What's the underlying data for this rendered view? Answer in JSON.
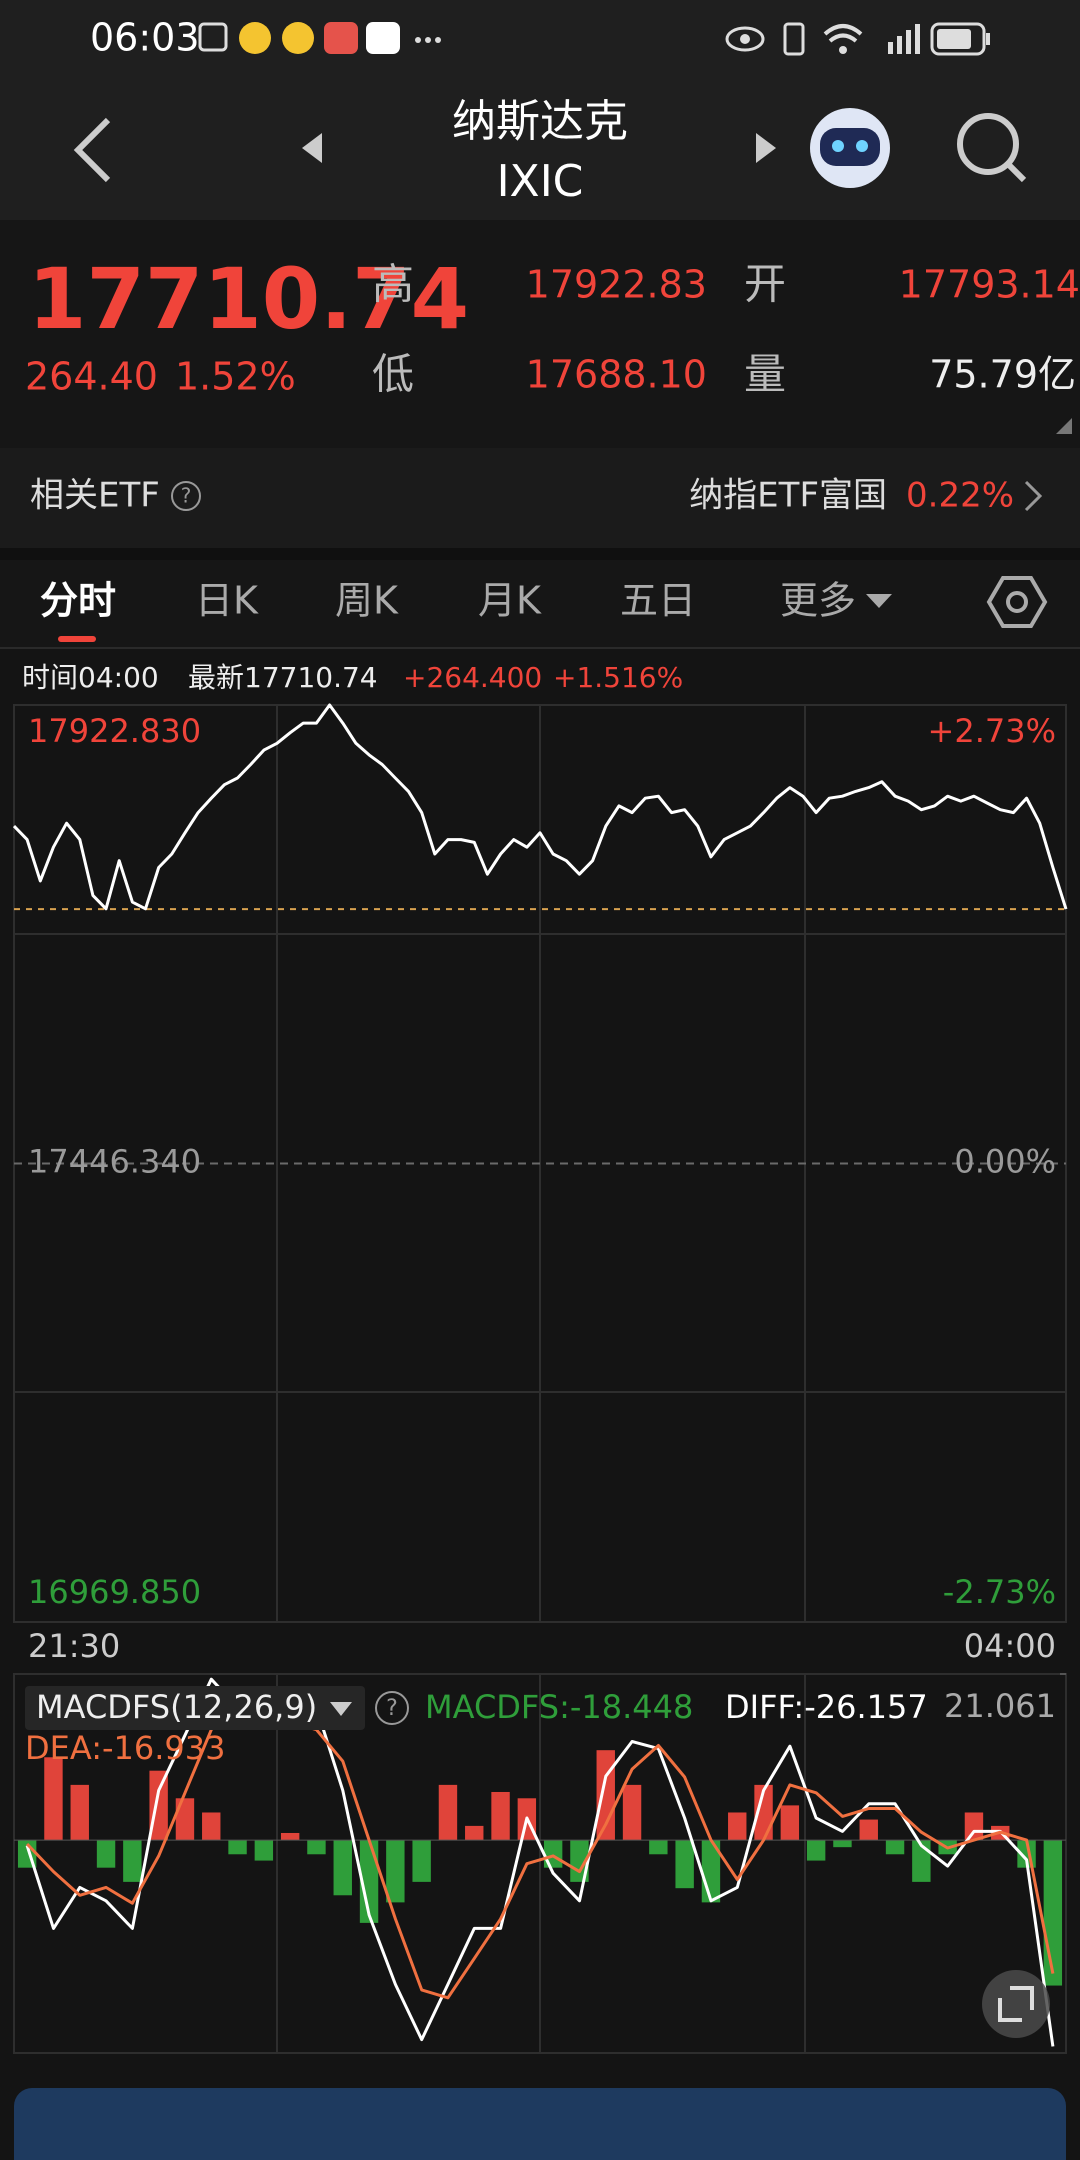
{
  "status_bar": {
    "time": "06:03"
  },
  "header": {
    "title": "纳斯达克",
    "subtitle": "IXIC"
  },
  "quote": {
    "price": 17710.74,
    "change": "264.40",
    "change_pct": "1.52%",
    "high_label": "高",
    "high": 17922.83,
    "open_label": "开",
    "open": 17793.14,
    "low_label": "低",
    "low": "17688.10",
    "volume_label": "量",
    "volume": "75.79亿"
  },
  "etf": {
    "label": "相关ETF",
    "name": "纳指ETF富国",
    "change": "0.22%"
  },
  "tabs": [
    "分时",
    "日K",
    "周K",
    "月K",
    "五日",
    "更多"
  ],
  "info": {
    "time": "时间04:00",
    "latest": "最新17710.74",
    "change": "+264.400",
    "change_pct": "+1.516%"
  },
  "chart_data": [
    {
      "type": "line",
      "color": "#ffffff",
      "x_labels": [
        "21:30",
        "04:00"
      ],
      "ylim": [
        16969.85,
        17922.83
      ],
      "yticks": [
        {
          "value": 17922.83,
          "label": "17922.830"
        },
        {
          "value": 17446.34,
          "label": "17446.340"
        },
        {
          "value": 16969.85,
          "label": "16969.850"
        }
      ],
      "y2lim": [
        -2.73,
        2.73
      ],
      "y2ticks": [
        {
          "value": 2.73,
          "label": "+2.73%"
        },
        {
          "value": 0,
          "label": "0.00%"
        },
        {
          "value": -2.73,
          "label": "-2.73%"
        }
      ],
      "values": [
        17797,
        17783,
        17740,
        17775,
        17800,
        17783,
        17725,
        17711,
        17761,
        17718,
        17711,
        17754,
        17768,
        17790,
        17811,
        17826,
        17840,
        17847,
        17861,
        17876,
        17883,
        17894,
        17904,
        17904,
        17922.83,
        17904,
        17883,
        17871,
        17861,
        17847,
        17833,
        17811,
        17768,
        17783,
        17783,
        17780,
        17747,
        17768,
        17783,
        17775,
        17790,
        17768,
        17761,
        17747,
        17761,
        17797,
        17818,
        17811,
        17826,
        17828,
        17811,
        17814,
        17797,
        17765,
        17783,
        17790,
        17797,
        17811,
        17826,
        17837,
        17828,
        17811,
        17826,
        17828,
        17833,
        17837,
        17843,
        17828,
        17823,
        17814,
        17818,
        17828,
        17823,
        17828,
        17821,
        17814,
        17811,
        17826,
        17800,
        17754,
        17710.74
      ]
    },
    {
      "type": "macd",
      "title": "MACDFS(12,26,9)",
      "ylim": [
        -27,
        21.061
      ],
      "yticks": [
        21.061
      ],
      "histogram": {
        "label": "MACDFS:-18.448",
        "up_color": "#e0443a",
        "down_color": "#2f9e3a",
        "values": [
          -3.5,
          10.5,
          7.0,
          -3.5,
          -5.3,
          8.8,
          5.3,
          3.5,
          -1.8,
          -2.6,
          0.9,
          -1.8,
          -7.0,
          -10.5,
          -7.9,
          -5.3,
          7.0,
          1.8,
          6.1,
          5.3,
          -3.5,
          -5.3,
          11.4,
          7.0,
          -1.8,
          -6.1,
          -7.9,
          3.5,
          7.0,
          4.4,
          -2.6,
          -0.9,
          2.6,
          -1.8,
          -5.3,
          -1.8,
          3.5,
          1.8,
          -3.5,
          -18.448
        ]
      },
      "series": [
        {
          "label": "DIFF:-26.157",
          "color": "#ffffff",
          "values": [
            -0.7,
            -11.2,
            -6.0,
            -7.7,
            -11.2,
            6.3,
            13.3,
            20.4,
            16.8,
            15.1,
            14.2,
            16.8,
            6.3,
            -9.5,
            -18.3,
            -25.3,
            -18.3,
            -11.2,
            -11.2,
            2.8,
            -4.2,
            -7.7,
            8.1,
            12.5,
            11.6,
            2.8,
            -7.7,
            -6.0,
            6.3,
            11.9,
            2.8,
            1.1,
            4.6,
            4.6,
            -0.7,
            -3.3,
            1.1,
            1.1,
            -2.5,
            -26.157
          ]
        },
        {
          "label": "DEA:-16.933",
          "color": "#f07040",
          "values": [
            -0.5,
            -4,
            -7,
            -6,
            -8,
            -2,
            6,
            14,
            18,
            17,
            15,
            14,
            10,
            0,
            -10,
            -19,
            -20,
            -15,
            -10,
            -3,
            -2,
            -4,
            2,
            9,
            12,
            8,
            0,
            -5,
            0,
            7,
            6,
            3,
            4,
            4,
            1,
            -1,
            0,
            1,
            0,
            -16.933
          ]
        }
      ]
    }
  ]
}
